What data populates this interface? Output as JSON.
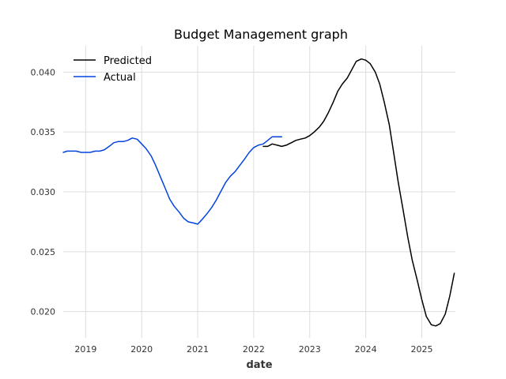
{
  "chart_data": {
    "type": "line",
    "title": "Budget Management graph",
    "xlabel": "date",
    "ylabel": "",
    "xlim": [
      2018.6,
      2025.6
    ],
    "ylim": [
      0.0178,
      0.0422
    ],
    "grid": true,
    "legend_position": "top-left",
    "x_ticks": [
      2019,
      2020,
      2021,
      2022,
      2023,
      2024,
      2025
    ],
    "x_tick_labels": [
      "2019",
      "2020",
      "2021",
      "2022",
      "2023",
      "2024",
      "2025"
    ],
    "y_ticks": [
      0.02,
      0.025,
      0.03,
      0.035,
      0.04
    ],
    "y_tick_labels": [
      "0.020",
      "0.025",
      "0.030",
      "0.035",
      "0.040"
    ],
    "series": [
      {
        "name": "Predicted",
        "color": "#000000",
        "x": [
          2022.17,
          2022.25,
          2022.33,
          2022.42,
          2022.5,
          2022.58,
          2022.67,
          2022.75,
          2022.83,
          2022.92,
          2023.0,
          2023.08,
          2023.17,
          2023.25,
          2023.33,
          2023.42,
          2023.5,
          2023.58,
          2023.67,
          2023.75,
          2023.83,
          2023.92,
          2024.0,
          2024.08,
          2024.17,
          2024.25,
          2024.33,
          2024.42,
          2024.5,
          2024.58,
          2024.67,
          2024.75,
          2024.83,
          2024.92,
          2025.0,
          2025.08,
          2025.17,
          2025.25,
          2025.33,
          2025.42,
          2025.5,
          2025.58
        ],
        "y": [
          0.0338,
          0.0338,
          0.034,
          0.0339,
          0.0338,
          0.0339,
          0.0341,
          0.0343,
          0.0344,
          0.0345,
          0.0347,
          0.035,
          0.0354,
          0.0359,
          0.0366,
          0.0375,
          0.0384,
          0.039,
          0.0395,
          0.0402,
          0.0409,
          0.0411,
          0.041,
          0.0407,
          0.04,
          0.039,
          0.0375,
          0.0356,
          0.0332,
          0.0308,
          0.0284,
          0.0262,
          0.0243,
          0.0226,
          0.021,
          0.0196,
          0.0189,
          0.0188,
          0.019,
          0.0198,
          0.0213,
          0.0232
        ]
      },
      {
        "name": "Actual",
        "color": "#0343df",
        "x": [
          2018.6,
          2018.67,
          2018.75,
          2018.83,
          2018.92,
          2019.0,
          2019.08,
          2019.17,
          2019.25,
          2019.33,
          2019.42,
          2019.5,
          2019.58,
          2019.67,
          2019.75,
          2019.83,
          2019.92,
          2020.0,
          2020.08,
          2020.17,
          2020.25,
          2020.33,
          2020.42,
          2020.5,
          2020.58,
          2020.67,
          2020.75,
          2020.83,
          2020.92,
          2021.0,
          2021.08,
          2021.17,
          2021.25,
          2021.33,
          2021.42,
          2021.5,
          2021.58,
          2021.67,
          2021.75,
          2021.83,
          2021.92,
          2022.0,
          2022.08,
          2022.17,
          2022.25,
          2022.33,
          2022.42,
          2022.5
        ],
        "y": [
          0.0333,
          0.0334,
          0.0334,
          0.0334,
          0.0333,
          0.0333,
          0.0333,
          0.0334,
          0.0334,
          0.0335,
          0.0338,
          0.0341,
          0.0342,
          0.0342,
          0.0343,
          0.0345,
          0.0344,
          0.034,
          0.0336,
          0.033,
          0.0322,
          0.0313,
          0.0303,
          0.0294,
          0.0288,
          0.0283,
          0.0278,
          0.0275,
          0.0274,
          0.0273,
          0.0277,
          0.0282,
          0.0287,
          0.0293,
          0.0301,
          0.0308,
          0.0313,
          0.0317,
          0.0322,
          0.0327,
          0.0333,
          0.0337,
          0.0339,
          0.034,
          0.0343,
          0.0346,
          0.0346,
          0.0346
        ]
      }
    ]
  }
}
